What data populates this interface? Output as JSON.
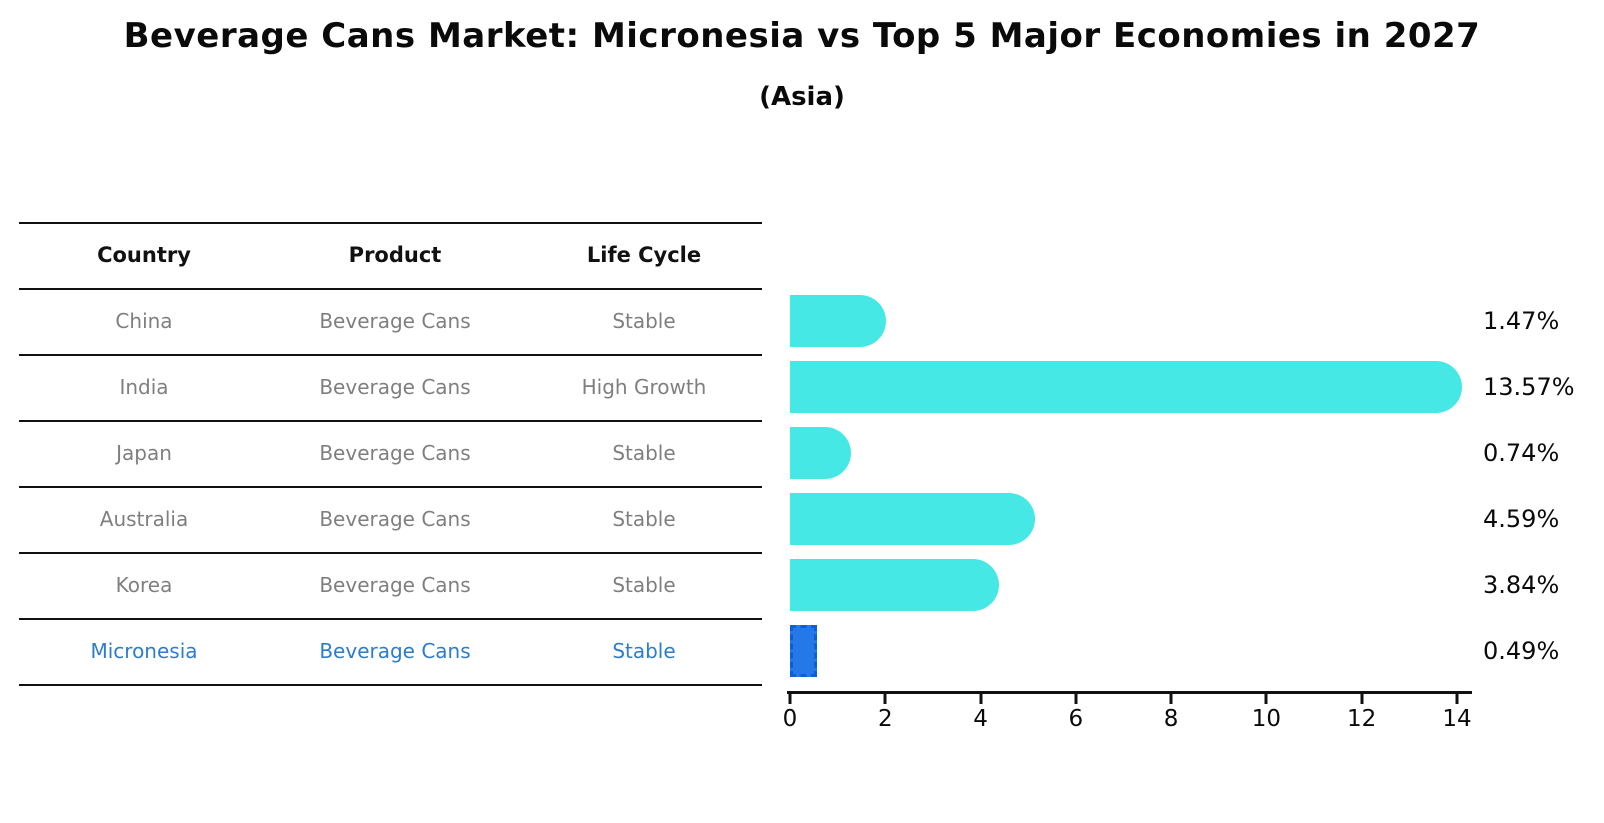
{
  "title": "Beverage Cans Market: Micronesia vs Top 5 Major Economies in 2027",
  "subtitle": "(Asia)",
  "table": {
    "headers": [
      "Country",
      "Product",
      "Life Cycle"
    ],
    "rows": [
      {
        "country": "China",
        "product": "Beverage Cans",
        "life_cycle": "Stable",
        "highlight": false
      },
      {
        "country": "India",
        "product": "Beverage Cans",
        "life_cycle": "High Growth",
        "highlight": false
      },
      {
        "country": "Japan",
        "product": "Beverage Cans",
        "life_cycle": "Stable",
        "highlight": false
      },
      {
        "country": "Australia",
        "product": "Beverage Cans",
        "life_cycle": "Stable",
        "highlight": false
      },
      {
        "country": "Korea",
        "product": "Beverage Cans",
        "life_cycle": "Stable",
        "highlight": false
      },
      {
        "country": "Micronesia",
        "product": "Beverage Cans",
        "life_cycle": "Stable",
        "highlight": true
      }
    ]
  },
  "chart_data": {
    "type": "bar",
    "orientation": "horizontal",
    "title": "Beverage Cans Market: Micronesia vs Top 5 Major Economies in 2027",
    "subtitle": "(Asia)",
    "categories": [
      "China",
      "India",
      "Japan",
      "Australia",
      "Korea",
      "Micronesia"
    ],
    "values": [
      1.47,
      13.57,
      0.74,
      4.59,
      3.84,
      0.49
    ],
    "value_labels": [
      "1.47%",
      "13.57%",
      "0.74%",
      "4.59%",
      "3.84%",
      "0.49%"
    ],
    "xlabel": "",
    "ylabel": "",
    "xlim": [
      0,
      14
    ],
    "x_ticks": [
      0,
      2,
      4,
      6,
      8,
      10,
      12,
      14
    ],
    "grid": false,
    "legend": "none",
    "highlight_index": 5
  },
  "colors": {
    "bar": "#45e8e4",
    "highlight_bar": "#2478e8",
    "highlight_bar_border": "#0d5fd6",
    "highlight_text": "#2e7ccb",
    "row_text": "#7f7f7f",
    "header_text": "#111111",
    "axis": "#111111"
  }
}
